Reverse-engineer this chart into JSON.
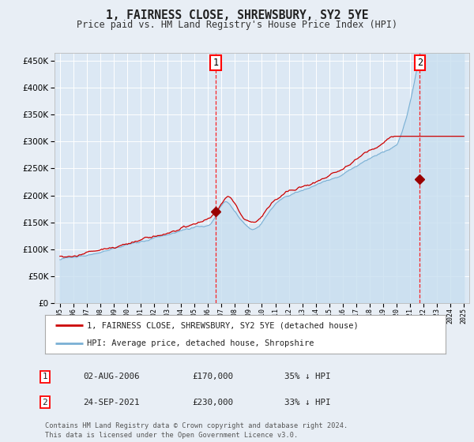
{
  "title": "1, FAIRNESS CLOSE, SHREWSBURY, SY2 5YE",
  "subtitle": "Price paid vs. HM Land Registry's House Price Index (HPI)",
  "bg_color": "#e8eef5",
  "plot_bg_color": "#dce8f4",
  "grid_color": "#c8d8e8",
  "hpi_color": "#7ab0d4",
  "hpi_fill_color": "#c8dff0",
  "price_color": "#cc0000",
  "marker_color": "#990000",
  "ylim": [
    0,
    470000
  ],
  "yticks": [
    0,
    50000,
    100000,
    150000,
    200000,
    250000,
    300000,
    350000,
    400000,
    450000
  ],
  "legend_entries": [
    "1, FAIRNESS CLOSE, SHREWSBURY, SY2 5YE (detached house)",
    "HPI: Average price, detached house, Shropshire"
  ],
  "annotation1_date": 2006.58,
  "annotation1_price": 170000,
  "annotation1_label": "1",
  "annotation2_date": 2021.73,
  "annotation2_price": 230000,
  "annotation2_label": "2",
  "ann1_date_str": "02-AUG-2006",
  "ann1_price_str": "£170,000",
  "ann1_pct_str": "35% ↓ HPI",
  "ann2_date_str": "24-SEP-2021",
  "ann2_price_str": "£230,000",
  "ann2_pct_str": "33% ↓ HPI",
  "footer": "Contains HM Land Registry data © Crown copyright and database right 2024.\nThis data is licensed under the Open Government Licence v3.0."
}
